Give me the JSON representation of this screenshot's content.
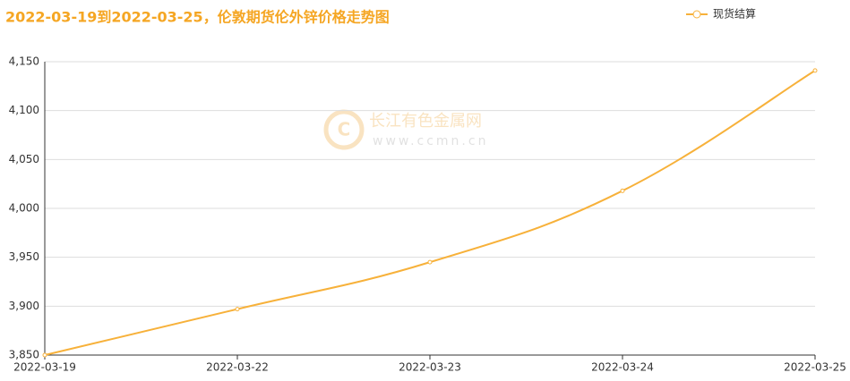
{
  "chart_data": {
    "type": "line",
    "title": "2022-03-19到2022-03-25，伦敦期货伦外锌价格走势图",
    "watermark": {
      "name": "长江有色金属网",
      "url": "www.ccmn.cn"
    },
    "categories": [
      "2022-03-19",
      "2022-03-22",
      "2022-03-23",
      "2022-03-24",
      "2022-03-25"
    ],
    "series": [
      {
        "name": "现货结算",
        "color": "#f7b13a",
        "values": [
          3850,
          3897,
          3945,
          4018,
          4141
        ]
      }
    ],
    "ylim": [
      3850,
      4150
    ],
    "yticks": [
      {
        "value": 3850,
        "label": "3,850"
      },
      {
        "value": 3900,
        "label": "3,900"
      },
      {
        "value": 3950,
        "label": "3,950"
      },
      {
        "value": 4000,
        "label": "4,000"
      },
      {
        "value": 4050,
        "label": "4,050"
      },
      {
        "value": 4100,
        "label": "4,100"
      },
      {
        "value": 4150,
        "label": "4,150"
      }
    ],
    "grid": true,
    "legend": "top-right"
  }
}
